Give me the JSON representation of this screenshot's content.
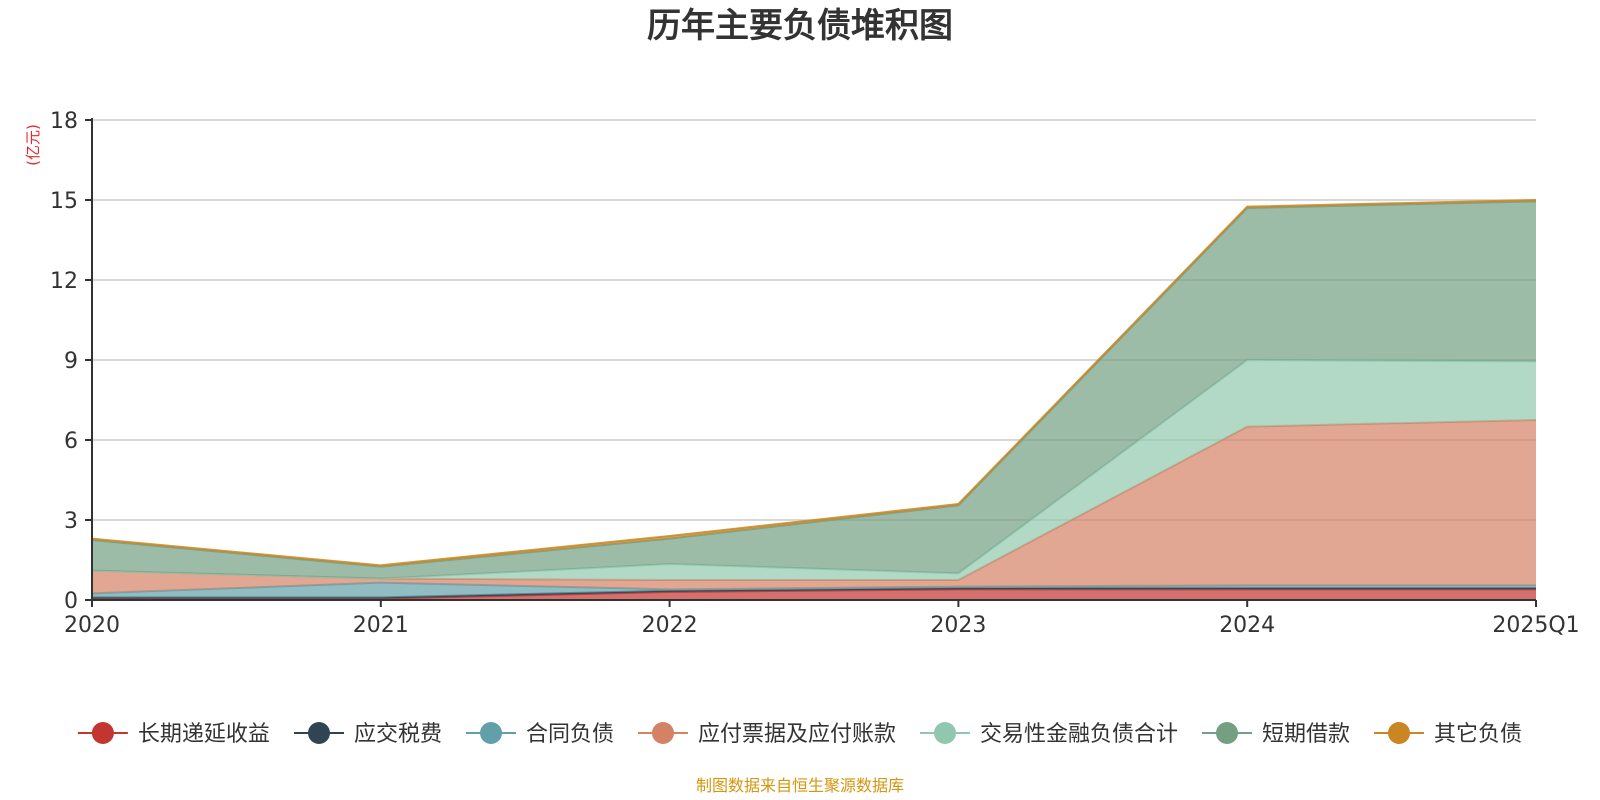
{
  "chart_data": {
    "type": "area",
    "title": "历年主要负债堆积图",
    "unit": "(亿元)",
    "source": "制图数据来自恒生聚源数据库",
    "categories": [
      "2020",
      "2021",
      "2022",
      "2023",
      "2024",
      "2025Q1"
    ],
    "ylim": [
      0,
      18
    ],
    "yticks": [
      "0",
      "3",
      "6",
      "9",
      "12",
      "15",
      "18"
    ],
    "stacked": true,
    "grid": true,
    "legend_position": "bottom",
    "series": [
      {
        "name": "长期递延收益",
        "color": "#c23531",
        "values": [
          0.05,
          0.05,
          0.3,
          0.4,
          0.4,
          0.4
        ]
      },
      {
        "name": "应交税费",
        "color": "#2f4554",
        "values": [
          0.05,
          0.05,
          0.05,
          0.05,
          0.05,
          0.05
        ]
      },
      {
        "name": "合同负债",
        "color": "#61a0a8",
        "values": [
          0.15,
          0.55,
          0.05,
          0.05,
          0.1,
          0.1
        ]
      },
      {
        "name": "应付票据及应付账款",
        "color": "#d48265",
        "values": [
          0.85,
          0.15,
          0.35,
          0.25,
          5.95,
          6.2
        ]
      },
      {
        "name": "交易性金融负债合计",
        "color": "#91c7ae",
        "values": [
          0.0,
          0.0,
          0.6,
          0.25,
          2.5,
          2.2
        ]
      },
      {
        "name": "短期借款",
        "color": "#749f83",
        "values": [
          1.15,
          0.45,
          0.95,
          2.55,
          5.7,
          6.0
        ]
      },
      {
        "name": "其它负债",
        "color": "#ca8622",
        "values": [
          0.05,
          0.05,
          0.1,
          0.05,
          0.05,
          0.05
        ]
      }
    ]
  }
}
